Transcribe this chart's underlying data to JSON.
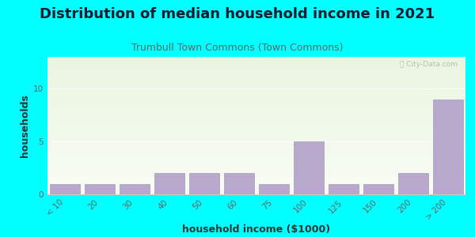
{
  "title": "Distribution of median household income in 2021",
  "subtitle": "Trumbull Town Commons (Town Commons)",
  "xlabel": "household income ($1000)",
  "ylabel": "households",
  "background_color": "#00FFFF",
  "bar_color": "#b8a8cc",
  "bar_edge_color": "#a898bc",
  "categories": [
    "< 10",
    "20",
    "30",
    "40",
    "50",
    "60",
    "75",
    "100",
    "125",
    "150",
    "200",
    "> 200"
  ],
  "values": [
    1,
    1,
    1,
    2,
    2,
    2,
    1,
    5,
    1,
    1,
    2,
    9
  ],
  "ylim": [
    0,
    13
  ],
  "yticks": [
    0,
    5,
    10
  ],
  "title_fontsize": 13,
  "subtitle_fontsize": 9,
  "label_fontsize": 9,
  "tick_fontsize": 7.5,
  "watermark_text": "ⓘ City-Data.com",
  "grad_top": "#eaf5e0",
  "grad_bottom": "#f8fdf4"
}
